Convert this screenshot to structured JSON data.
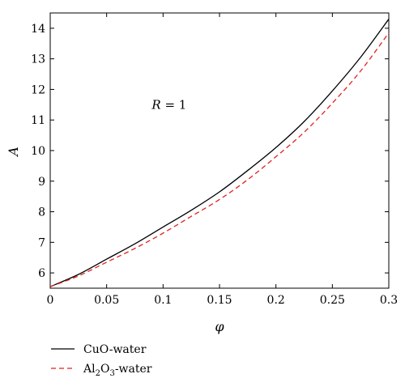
{
  "chart_data": {
    "type": "line",
    "title": "",
    "xlabel": "φ",
    "ylabel": "A",
    "xlim": [
      0,
      0.3
    ],
    "ylim": [
      5.5,
      14.5
    ],
    "xticks": [
      0,
      0.05,
      0.1,
      0.15,
      0.2,
      0.25,
      0.3
    ],
    "xtick_labels": [
      "0",
      "0.05",
      "0.1",
      "0.15",
      "0.2",
      "0.25",
      "0.3"
    ],
    "yticks": [
      6,
      7,
      8,
      9,
      10,
      11,
      12,
      13,
      14
    ],
    "ytick_labels": [
      "6",
      "7",
      "8",
      "9",
      "10",
      "11",
      "12",
      "13",
      "14"
    ],
    "grid": false,
    "legend_position": "bottom-left-outside",
    "annotation": {
      "var": "R",
      "rest": " = 1",
      "x": 0.09,
      "y": 11.5
    },
    "x": [
      0,
      0.025,
      0.05,
      0.075,
      0.1,
      0.125,
      0.15,
      0.175,
      0.2,
      0.225,
      0.25,
      0.275,
      0.3
    ],
    "series": [
      {
        "name_main": "CuO-water",
        "name_sub": "",
        "name_tail": "",
        "color": "#000000",
        "dash": "",
        "values": [
          5.55,
          5.95,
          6.45,
          6.95,
          7.5,
          8.05,
          8.65,
          9.35,
          10.1,
          10.95,
          11.95,
          13.05,
          14.3
        ]
      },
      {
        "name_main": "Al",
        "name_sub": "2",
        "name_mid": "O",
        "name_sub2": "3",
        "name_tail": "-water",
        "color": "#e0211f",
        "dash": "6,4",
        "values": [
          5.55,
          5.9,
          6.35,
          6.8,
          7.3,
          7.85,
          8.4,
          9.05,
          9.8,
          10.6,
          11.55,
          12.6,
          13.85
        ]
      }
    ]
  }
}
